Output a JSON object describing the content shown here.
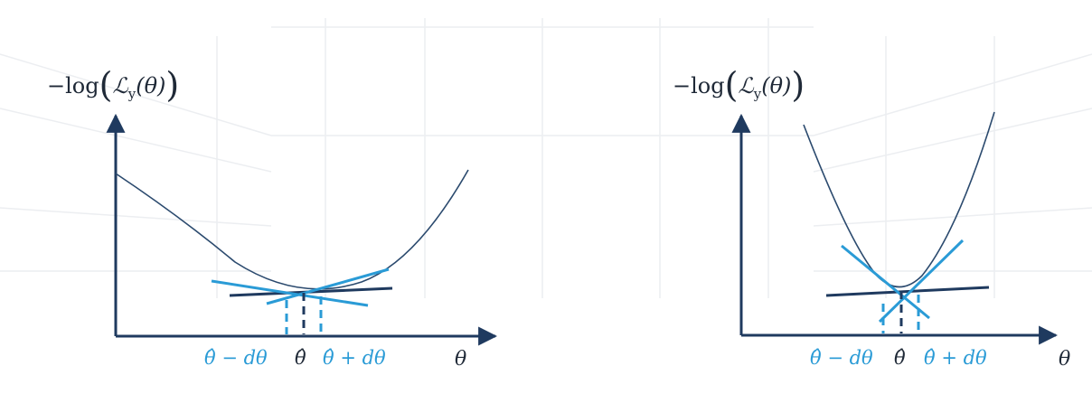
{
  "colors": {
    "axis": "#1f3a5f",
    "curve": "#2b4a6e",
    "tangent_dark": "#1f3a5f",
    "tangent_blue": "#2a9bd6",
    "guide_dark": "#1f3a5f",
    "guide_blue": "#2a9bd6",
    "label_blue": "#2a9bd6",
    "label_dark": "#1f2937"
  },
  "panels": [
    {
      "id": "left",
      "ylabel": {
        "prefix": "−log",
        "open": "(",
        "script": "ℒ",
        "sub": "y",
        "arg": "(θ)",
        "close": ")"
      },
      "xlabel": "θ",
      "ticks": {
        "minus": "θ̂ − dθ",
        "center": "θ̂",
        "plus": "θ̂ + dθ"
      }
    },
    {
      "id": "right",
      "ylabel": {
        "prefix": "−log",
        "open": "(",
        "script": "ℒ",
        "sub": "y",
        "arg": "(θ)",
        "close": ")"
      },
      "xlabel": "θ",
      "ticks": {
        "minus": "θ̂ − dθ",
        "center": "θ̂",
        "plus": "θ̂ + dθ"
      }
    }
  ]
}
